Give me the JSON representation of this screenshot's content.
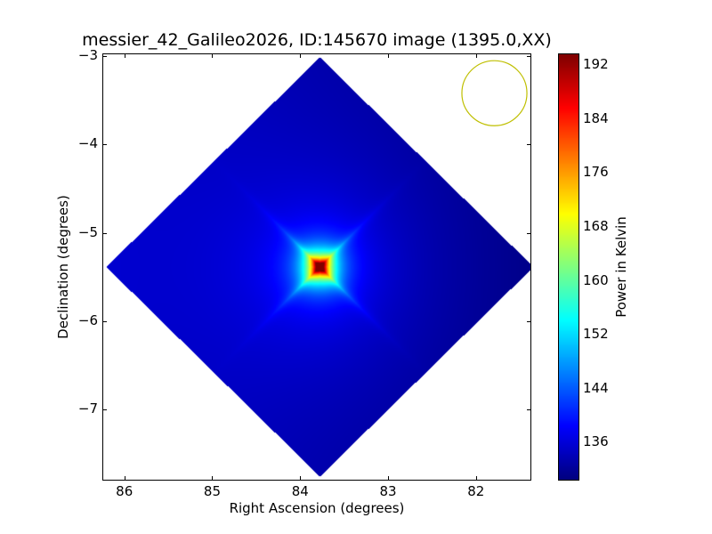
{
  "chart_data": {
    "type": "heatmap",
    "title": "messier_42_Galileo2026, ID:145670 image (1395.0,XX)",
    "xlabel": "Right Ascension (degrees)",
    "ylabel": "Declination (degrees)",
    "xlim": [
      86.24,
      81.38
    ],
    "ylim": [
      -7.79,
      -2.98
    ],
    "x_ticks": [
      "86",
      "85",
      "84",
      "83",
      "82"
    ],
    "x_tick_values": [
      86,
      85,
      84,
      83,
      82
    ],
    "y_ticks": [
      "−3",
      "−4",
      "−5",
      "−6",
      "−7"
    ],
    "y_tick_values": [
      -3,
      -4,
      -5,
      -6,
      -7
    ],
    "colormap": "jet",
    "colorbar": {
      "label": "Power in Kelvin",
      "range": [
        130.5,
        193.6
      ],
      "ticks": [
        "136",
        "144",
        "152",
        "160",
        "168",
        "176",
        "184",
        "192"
      ],
      "tick_values": [
        136,
        144,
        152,
        160,
        168,
        176,
        184,
        192
      ]
    },
    "field": {
      "shape": "diamond",
      "center_ra": 83.78,
      "center_dec": -5.38,
      "half_width_ra": 2.43,
      "half_height_dec": 2.37,
      "background_value": 133,
      "peak_value": 193,
      "peak_ra": 83.78,
      "peak_dec": -5.38
    },
    "beam": {
      "ra": 81.79,
      "dec": -3.42,
      "radius_deg": 0.37,
      "color": "#bfbf00"
    }
  }
}
